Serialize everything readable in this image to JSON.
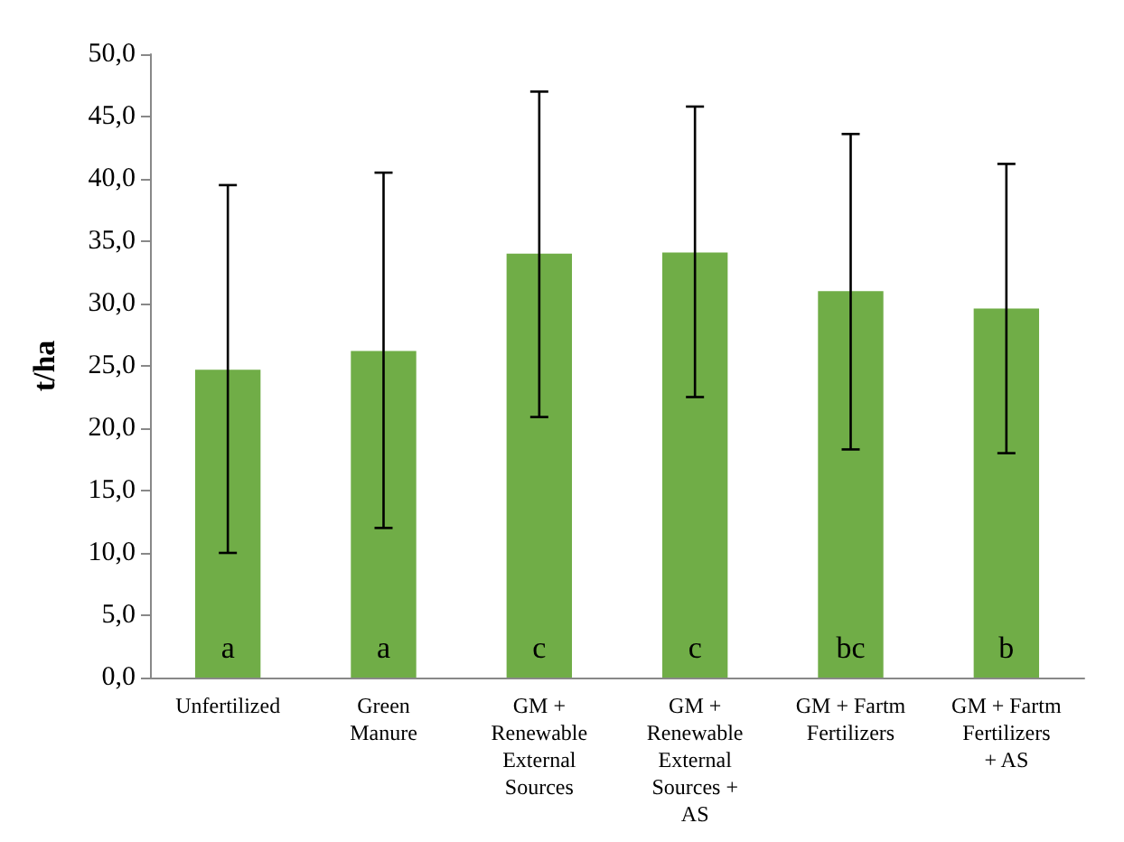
{
  "chart_data": {
    "type": "bar",
    "ylabel": "t/ha",
    "categories": [
      "Unfertilized",
      "Green Manure",
      "GM + Renewable External Sources",
      "GM + Renewable External Sources + AS",
      "GM + Fartm Fertilizers",
      "GM + Fartm Fertilizers + AS"
    ],
    "values": [
      24.7,
      26.2,
      34.0,
      34.1,
      31.0,
      29.6
    ],
    "errors": [
      [
        10.0,
        39.5
      ],
      [
        12.0,
        40.5
      ],
      [
        20.9,
        47.0
      ],
      [
        22.5,
        45.8
      ],
      [
        18.3,
        43.6
      ],
      [
        18.0,
        41.2
      ]
    ],
    "color": "#70ad47",
    "ylim": [
      0,
      50
    ],
    "yticks": [
      {
        "value": 0,
        "label": "0,0"
      },
      {
        "value": 5,
        "label": "5,0"
      },
      {
        "value": 10,
        "label": "10,0"
      },
      {
        "value": 15,
        "label": "15,0"
      },
      {
        "value": 20,
        "label": "20,0"
      },
      {
        "value": 25,
        "label": "25,0"
      },
      {
        "value": 30,
        "label": "30,0"
      },
      {
        "value": 35,
        "label": "35,0"
      },
      {
        "value": 40,
        "label": "40,0"
      },
      {
        "value": 45,
        "label": "45,0"
      },
      {
        "value": 50,
        "label": "50,0"
      }
    ],
    "annotations": [
      "a",
      "a",
      "c",
      "c",
      "bc",
      "b"
    ],
    "grid": false
  }
}
